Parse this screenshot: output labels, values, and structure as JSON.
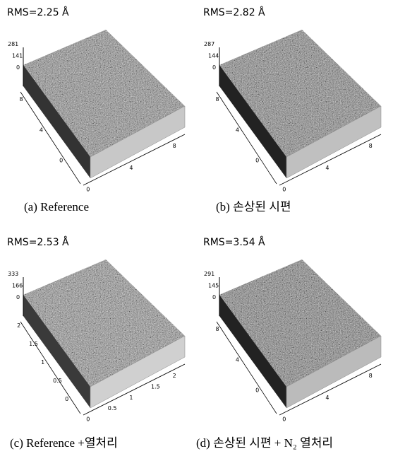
{
  "panels": [
    {
      "rms": "RMS=2.25 Å",
      "caption": "(a) Reference",
      "z_ticks": [
        "281",
        "141",
        "0"
      ],
      "y_ticks": [
        "8",
        "4",
        "0"
      ],
      "x_ticks": [
        "0",
        "4",
        "8"
      ]
    },
    {
      "rms": "RMS=2.82 Å",
      "caption": "(b) 손상된 시편",
      "z_ticks": [
        "287",
        "144",
        "0"
      ],
      "y_ticks": [
        "8",
        "4",
        "0"
      ],
      "x_ticks": [
        "0",
        "4",
        "8"
      ]
    },
    {
      "rms": "RMS=2.53 Å",
      "caption": "(c) Reference +열처리",
      "z_ticks": [
        "333",
        "166",
        "0"
      ],
      "y_ticks": [
        "2",
        "1.5",
        "1",
        "0.5",
        "0"
      ],
      "x_ticks": [
        "0",
        "0.5",
        "1",
        "1.5",
        "2"
      ]
    },
    {
      "rms": "RMS=3.54 Å",
      "caption": "(d) 손상된 시편 + N₂ 열처리",
      "z_ticks": [
        "291",
        "145",
        "0"
      ],
      "y_ticks": [
        "8",
        "4",
        "0"
      ],
      "x_ticks": [
        "0",
        "4",
        "8"
      ]
    }
  ]
}
